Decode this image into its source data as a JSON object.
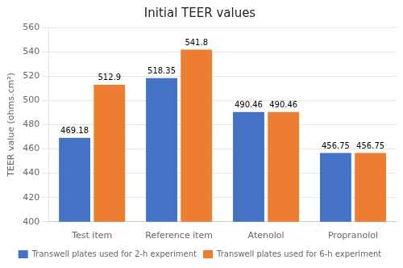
{
  "chart_data": {
    "type": "bar",
    "title": "Initial TEER values",
    "categories": [
      "Test item",
      "Reference item",
      "Atenolol",
      "Propranolol"
    ],
    "series": [
      {
        "name": "Transwell plates used for 2-h experiment",
        "color": "#4472c4",
        "values": [
          469.18,
          518.35,
          490.46,
          456.75
        ]
      },
      {
        "name": "Transwell plates used for 6-h experiment",
        "color": "#ed7d31",
        "values": [
          512.9,
          541.8,
          490.46,
          456.75
        ]
      }
    ],
    "ylabel": "TEER value (ohms.cm²)",
    "ylim": [
      400,
      560
    ],
    "yticks": [
      400,
      420,
      440,
      460,
      480,
      500,
      520,
      540,
      560
    ],
    "grid": true,
    "legend": "bottom",
    "data_labels": true
  }
}
